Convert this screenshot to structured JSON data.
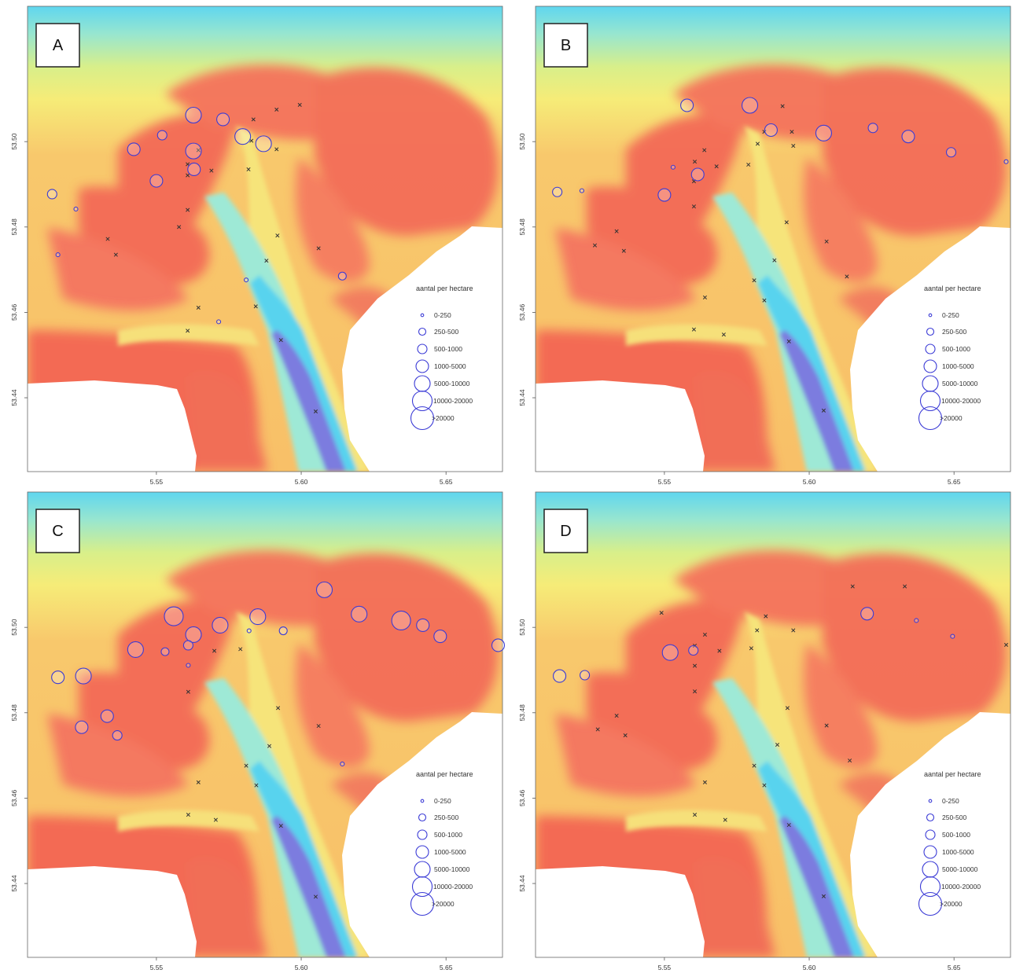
{
  "map": {
    "x_ticks": [
      "5.55",
      "5.60",
      "5.65"
    ],
    "x_tick_values": [
      5.55,
      5.6,
      5.65
    ],
    "y_ticks": [
      "53.50",
      "53.48",
      "53.46",
      "53.44"
    ],
    "y_tick_values": [
      53.5,
      53.48,
      53.46,
      53.44
    ],
    "x_range": [
      5.5055,
      5.6695
    ],
    "y_range": [
      53.5317,
      53.4227
    ]
  },
  "legend": {
    "title": "aantal per hectare",
    "classes": [
      "0-250",
      "250-500",
      "500-1000",
      "1000-5000",
      "5000-10000",
      "10000-20000",
      ">20000"
    ]
  },
  "colors": {
    "circle_stroke": "#3b3bd6",
    "cross": "#333333",
    "deep": "#7c7bdf",
    "shallow": "#f26a56"
  },
  "panels": [
    {
      "label": "A",
      "sites": [
        [
          5.5995,
          53.5086,
          "x"
        ],
        [
          5.5915,
          53.5075,
          "x"
        ],
        [
          5.5835,
          53.5052,
          "x"
        ],
        [
          5.5828,
          53.5002,
          "x"
        ],
        [
          5.5915,
          53.4982,
          "x"
        ],
        [
          5.5818,
          53.4935,
          "x"
        ],
        [
          5.569,
          53.4932,
          "x"
        ],
        [
          5.5645,
          53.498,
          "x"
        ],
        [
          5.5608,
          53.4947,
          "x"
        ],
        [
          5.5608,
          53.4921,
          "x"
        ],
        [
          5.5608,
          53.484,
          "x"
        ],
        [
          5.5578,
          53.48,
          "x"
        ],
        [
          5.5918,
          53.478,
          "x"
        ],
        [
          5.606,
          53.475,
          "x"
        ],
        [
          5.588,
          53.4721,
          "x"
        ],
        [
          5.5332,
          53.4772,
          "x"
        ],
        [
          5.536,
          53.4735,
          "x"
        ],
        [
          5.5645,
          53.4611,
          "x"
        ],
        [
          5.5843,
          53.4614,
          "x"
        ],
        [
          5.5608,
          53.4557,
          "x"
        ],
        [
          5.593,
          53.4535,
          "x"
        ],
        [
          5.605,
          53.4368,
          "x"
        ],
        [
          5.5628,
          53.5062,
          5
        ],
        [
          5.552,
          53.5015,
          3
        ],
        [
          5.5422,
          53.4982,
          4
        ],
        [
          5.5628,
          53.4978,
          5
        ],
        [
          5.573,
          53.5052,
          4
        ],
        [
          5.5798,
          53.5012,
          5
        ],
        [
          5.587,
          53.4995,
          5
        ],
        [
          5.563,
          53.4935,
          4
        ],
        [
          5.55,
          53.4908,
          4
        ],
        [
          5.514,
          53.4877,
          3
        ],
        [
          5.5222,
          53.4842,
          1
        ],
        [
          5.516,
          53.4735,
          1
        ],
        [
          5.6142,
          53.4685,
          2
        ],
        [
          5.581,
          53.4676,
          1
        ],
        [
          5.5715,
          53.4578,
          1
        ]
      ]
    },
    {
      "label": "B",
      "sites": [
        [
          5.5908,
          53.5083,
          "x"
        ],
        [
          5.594,
          53.5023,
          "x"
        ],
        [
          5.5845,
          53.5023,
          "x"
        ],
        [
          5.5822,
          53.4995,
          "x"
        ],
        [
          5.5945,
          53.499,
          "x"
        ],
        [
          5.5638,
          53.498,
          "x"
        ],
        [
          5.5605,
          53.4953,
          "x"
        ],
        [
          5.568,
          53.4942,
          "x"
        ],
        [
          5.579,
          53.4946,
          "x"
        ],
        [
          5.5602,
          53.4907,
          "x"
        ],
        [
          5.5602,
          53.4848,
          "x"
        ],
        [
          5.5922,
          53.4811,
          "x"
        ],
        [
          5.606,
          53.4766,
          "x"
        ],
        [
          5.588,
          53.4722,
          "x"
        ],
        [
          5.5335,
          53.479,
          "x"
        ],
        [
          5.526,
          53.4757,
          "x"
        ],
        [
          5.536,
          53.4744,
          "x"
        ],
        [
          5.613,
          53.4684,
          "x"
        ],
        [
          5.581,
          53.4675,
          "x"
        ],
        [
          5.564,
          53.4635,
          "x"
        ],
        [
          5.5845,
          53.4628,
          "x"
        ],
        [
          5.5602,
          53.456,
          "x"
        ],
        [
          5.5705,
          53.4548,
          "x"
        ],
        [
          5.593,
          53.4532,
          "x"
        ],
        [
          5.605,
          53.437,
          "x"
        ],
        [
          5.5578,
          53.5085,
          4
        ],
        [
          5.5795,
          53.5085,
          5
        ],
        [
          5.5868,
          53.5027,
          4
        ],
        [
          5.5615,
          53.4923,
          4
        ],
        [
          5.55,
          53.4875,
          4
        ],
        [
          5.553,
          53.494,
          1
        ],
        [
          5.513,
          53.4882,
          3
        ],
        [
          5.5215,
          53.4885,
          1
        ],
        [
          5.622,
          53.5032,
          3
        ],
        [
          5.6342,
          53.5012,
          4
        ],
        [
          5.605,
          53.502,
          5
        ],
        [
          5.649,
          53.4975,
          3
        ],
        [
          5.668,
          53.4953,
          1
        ]
      ]
    },
    {
      "label": "C",
      "sites": [
        [
          5.561,
          53.4849,
          "x"
        ],
        [
          5.592,
          53.4811,
          "x"
        ],
        [
          5.606,
          53.4769,
          "x"
        ],
        [
          5.589,
          53.4722,
          "x"
        ],
        [
          5.581,
          53.4676,
          "x"
        ],
        [
          5.5645,
          53.4637,
          "x"
        ],
        [
          5.5845,
          53.463,
          "x"
        ],
        [
          5.561,
          53.4561,
          "x"
        ],
        [
          5.5705,
          53.4549,
          "x"
        ],
        [
          5.593,
          53.4535,
          "x"
        ],
        [
          5.605,
          53.4369,
          "x"
        ],
        [
          5.57,
          53.4945,
          "x"
        ],
        [
          5.579,
          53.4949,
          "x"
        ],
        [
          5.556,
          53.5026,
          6
        ],
        [
          5.572,
          53.5005,
          5
        ],
        [
          5.585,
          53.5025,
          5
        ],
        [
          5.5628,
          53.4983,
          5
        ],
        [
          5.582,
          53.4992,
          1
        ],
        [
          5.5938,
          53.4992,
          2
        ],
        [
          5.561,
          53.4958,
          3
        ],
        [
          5.561,
          53.4911,
          1
        ],
        [
          5.553,
          53.4943,
          2
        ],
        [
          5.5428,
          53.4948,
          5
        ],
        [
          5.516,
          53.4883,
          4
        ],
        [
          5.5248,
          53.4886,
          5
        ],
        [
          5.5242,
          53.4766,
          4
        ],
        [
          5.533,
          53.4792,
          4
        ],
        [
          5.5365,
          53.4747,
          3
        ],
        [
          5.6142,
          53.468,
          1
        ],
        [
          5.642,
          53.5005,
          4
        ],
        [
          5.608,
          53.5088,
          5
        ],
        [
          5.62,
          53.5031,
          5
        ],
        [
          5.6345,
          53.5016,
          6
        ],
        [
          5.648,
          53.4979,
          4
        ],
        [
          5.668,
          53.4958,
          4
        ]
      ]
    },
    {
      "label": "D",
      "sites": [
        [
          5.615,
          53.5096,
          "x"
        ],
        [
          5.633,
          53.5096,
          "x"
        ],
        [
          5.549,
          53.5034,
          "x"
        ],
        [
          5.585,
          53.5026,
          "x"
        ],
        [
          5.582,
          53.4993,
          "x"
        ],
        [
          5.5945,
          53.4993,
          "x"
        ],
        [
          5.564,
          53.4983,
          "x"
        ],
        [
          5.5605,
          53.4957,
          "x"
        ],
        [
          5.569,
          53.4945,
          "x"
        ],
        [
          5.58,
          53.4951,
          "x"
        ],
        [
          5.5605,
          53.491,
          "x"
        ],
        [
          5.5605,
          53.485,
          "x"
        ],
        [
          5.5925,
          53.4811,
          "x"
        ],
        [
          5.606,
          53.477,
          "x"
        ],
        [
          5.589,
          53.4725,
          "x"
        ],
        [
          5.5335,
          53.4793,
          "x"
        ],
        [
          5.527,
          53.4761,
          "x"
        ],
        [
          5.5365,
          53.4747,
          "x"
        ],
        [
          5.614,
          53.4688,
          "x"
        ],
        [
          5.581,
          53.4676,
          "x"
        ],
        [
          5.564,
          53.4637,
          "x"
        ],
        [
          5.5845,
          53.463,
          "x"
        ],
        [
          5.5605,
          53.4561,
          "x"
        ],
        [
          5.571,
          53.4549,
          "x"
        ],
        [
          5.593,
          53.4537,
          "x"
        ],
        [
          5.605,
          53.437,
          "x"
        ],
        [
          5.668,
          53.4959,
          "x"
        ],
        [
          5.552,
          53.4941,
          5
        ],
        [
          5.56,
          53.4946,
          3
        ],
        [
          5.5138,
          53.4886,
          4
        ],
        [
          5.5225,
          53.4888,
          3
        ],
        [
          5.62,
          53.5032,
          4
        ],
        [
          5.637,
          53.5016,
          1
        ],
        [
          5.6495,
          53.4979,
          1
        ]
      ]
    }
  ]
}
